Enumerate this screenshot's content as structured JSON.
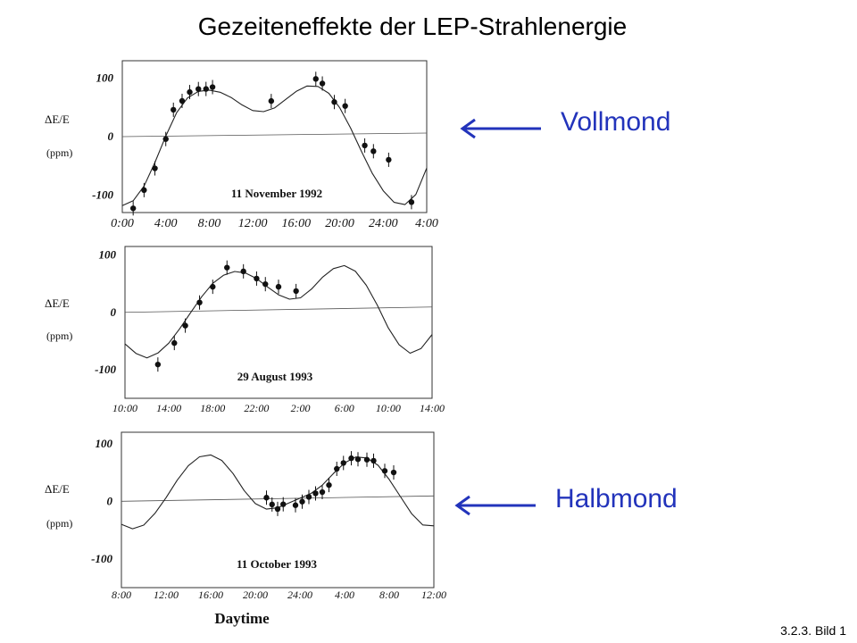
{
  "slide": {
    "title": "Gezeiteneffekte der LEP-Strahlenergie",
    "footer": "3.2.3. Bild 1",
    "moon_labels": [
      "Vollmond",
      "Halbmond"
    ],
    "accent_color": "#2233bb",
    "arrow_icon": "left-arrow-icon"
  },
  "chart_data": [
    {
      "type": "scatter",
      "date_label": "11 November 1992",
      "ylabel": "ΔE/E",
      "ylabel_unit": "(ppm)",
      "xlabel": "",
      "ylim": [
        -130,
        130
      ],
      "y_ticks": [
        100,
        0,
        -100
      ],
      "x_tick_labels": [
        "0:00",
        "4:00",
        "8:00",
        "12:00",
        "16:00",
        "20:00",
        "24:00",
        "4:00"
      ],
      "x_range_hours": [
        0,
        28
      ],
      "annotation": "Vollmond",
      "series": [
        {
          "kind": "measurement",
          "points": [
            {
              "x": 1.0,
              "y": -123
            },
            {
              "x": 2.0,
              "y": -92
            },
            {
              "x": 3.0,
              "y": -55
            },
            {
              "x": 4.0,
              "y": -5
            },
            {
              "x": 4.7,
              "y": 45
            },
            {
              "x": 5.5,
              "y": 60
            },
            {
              "x": 6.2,
              "y": 75
            },
            {
              "x": 7.0,
              "y": 80
            },
            {
              "x": 7.7,
              "y": 80
            },
            {
              "x": 8.3,
              "y": 83
            },
            {
              "x": 13.7,
              "y": 58
            },
            {
              "x": 17.8,
              "y": 95
            },
            {
              "x": 18.4,
              "y": 87
            },
            {
              "x": 19.5,
              "y": 55
            },
            {
              "x": 20.5,
              "y": 48
            },
            {
              "x": 22.3,
              "y": -20
            },
            {
              "x": 23.1,
              "y": -30
            },
            {
              "x": 24.5,
              "y": -45
            },
            {
              "x": 26.6,
              "y": -118
            }
          ]
        },
        {
          "kind": "model_curve",
          "curve": [
            {
              "x": 0,
              "y": -118
            },
            {
              "x": 1,
              "y": -110
            },
            {
              "x": 2,
              "y": -85
            },
            {
              "x": 3,
              "y": -45
            },
            {
              "x": 4,
              "y": 0
            },
            {
              "x": 5,
              "y": 40
            },
            {
              "x": 6,
              "y": 65
            },
            {
              "x": 7,
              "y": 76
            },
            {
              "x": 8,
              "y": 78
            },
            {
              "x": 9,
              "y": 74
            },
            {
              "x": 10,
              "y": 65
            },
            {
              "x": 11,
              "y": 52
            },
            {
              "x": 12,
              "y": 42
            },
            {
              "x": 13,
              "y": 40
            },
            {
              "x": 14,
              "y": 46
            },
            {
              "x": 15,
              "y": 60
            },
            {
              "x": 16,
              "y": 74
            },
            {
              "x": 17,
              "y": 83
            },
            {
              "x": 18,
              "y": 82
            },
            {
              "x": 19,
              "y": 70
            },
            {
              "x": 20,
              "y": 45
            },
            {
              "x": 21,
              "y": 10
            },
            {
              "x": 22,
              "y": -30
            },
            {
              "x": 23,
              "y": -68
            },
            {
              "x": 24,
              "y": -98
            },
            {
              "x": 25,
              "y": -118
            },
            {
              "x": 26,
              "y": -122
            },
            {
              "x": 27,
              "y": -105
            },
            {
              "x": 28,
              "y": -60
            }
          ]
        }
      ]
    },
    {
      "type": "scatter",
      "date_label": "29 August 1993",
      "ylabel": "ΔE/E",
      "ylabel_unit": "(ppm)",
      "xlabel": "",
      "ylim": [
        -150,
        115
      ],
      "y_ticks": [
        100,
        0,
        -100
      ],
      "x_tick_labels": [
        "10:00",
        "14:00",
        "18:00",
        "22:00",
        "2:00",
        "6:00",
        "10:00",
        "14:00"
      ],
      "x_range_hours": [
        10,
        38
      ],
      "annotation": "",
      "series": [
        {
          "kind": "measurement",
          "points": [
            {
              "x": 13.0,
              "y": -92
            },
            {
              "x": 14.5,
              "y": -55
            },
            {
              "x": 15.5,
              "y": -25
            },
            {
              "x": 16.8,
              "y": 15
            },
            {
              "x": 18.0,
              "y": 42
            },
            {
              "x": 19.3,
              "y": 75
            },
            {
              "x": 20.8,
              "y": 68
            },
            {
              "x": 22.0,
              "y": 55
            },
            {
              "x": 22.8,
              "y": 45
            },
            {
              "x": 24.0,
              "y": 40
            },
            {
              "x": 25.6,
              "y": 32
            }
          ]
        },
        {
          "kind": "model_curve",
          "curve": [
            {
              "x": 10,
              "y": -55
            },
            {
              "x": 11,
              "y": -72
            },
            {
              "x": 12,
              "y": -80
            },
            {
              "x": 13,
              "y": -72
            },
            {
              "x": 14,
              "y": -55
            },
            {
              "x": 15,
              "y": -30
            },
            {
              "x": 16,
              "y": -2
            },
            {
              "x": 17,
              "y": 25
            },
            {
              "x": 18,
              "y": 48
            },
            {
              "x": 19,
              "y": 62
            },
            {
              "x": 20,
              "y": 68
            },
            {
              "x": 21,
              "y": 65
            },
            {
              "x": 22,
              "y": 55
            },
            {
              "x": 23,
              "y": 40
            },
            {
              "x": 24,
              "y": 26
            },
            {
              "x": 25,
              "y": 18
            },
            {
              "x": 26,
              "y": 20
            },
            {
              "x": 27,
              "y": 35
            },
            {
              "x": 28,
              "y": 55
            },
            {
              "x": 29,
              "y": 70
            },
            {
              "x": 30,
              "y": 75
            },
            {
              "x": 31,
              "y": 65
            },
            {
              "x": 32,
              "y": 40
            },
            {
              "x": 33,
              "y": 5
            },
            {
              "x": 34,
              "y": -35
            },
            {
              "x": 35,
              "y": -65
            },
            {
              "x": 36,
              "y": -80
            },
            {
              "x": 37,
              "y": -72
            },
            {
              "x": 38,
              "y": -48
            }
          ]
        }
      ]
    },
    {
      "type": "scatter",
      "date_label": "11 October 1993",
      "ylabel": "ΔE/E",
      "ylabel_unit": "(ppm)",
      "xlabel": "Daytime",
      "ylim": [
        -150,
        120
      ],
      "y_ticks": [
        100,
        0,
        -100
      ],
      "x_tick_labels": [
        "8:00",
        "12:00",
        "16:00",
        "20:00",
        "24:00",
        "4:00",
        "8:00",
        "12:00"
      ],
      "x_range_hours": [
        8,
        36
      ],
      "annotation": "Halbmond",
      "series": [
        {
          "kind": "measurement",
          "points": [
            {
              "x": 21.0,
              "y": 2
            },
            {
              "x": 21.5,
              "y": -10
            },
            {
              "x": 22.0,
              "y": -18
            },
            {
              "x": 22.5,
              "y": -10
            },
            {
              "x": 23.6,
              "y": -12
            },
            {
              "x": 24.2,
              "y": -6
            },
            {
              "x": 24.8,
              "y": 2
            },
            {
              "x": 25.4,
              "y": 8
            },
            {
              "x": 26.0,
              "y": 10
            },
            {
              "x": 26.6,
              "y": 22
            },
            {
              "x": 27.3,
              "y": 50
            },
            {
              "x": 27.9,
              "y": 60
            },
            {
              "x": 28.6,
              "y": 68
            },
            {
              "x": 29.2,
              "y": 66
            },
            {
              "x": 30.0,
              "y": 65
            },
            {
              "x": 30.6,
              "y": 63
            },
            {
              "x": 31.6,
              "y": 45
            },
            {
              "x": 32.4,
              "y": 42
            }
          ]
        },
        {
          "kind": "model_curve",
          "curve": [
            {
              "x": 8,
              "y": -40
            },
            {
              "x": 9,
              "y": -48
            },
            {
              "x": 10,
              "y": -42
            },
            {
              "x": 11,
              "y": -22
            },
            {
              "x": 12,
              "y": 5
            },
            {
              "x": 13,
              "y": 35
            },
            {
              "x": 14,
              "y": 60
            },
            {
              "x": 15,
              "y": 75
            },
            {
              "x": 16,
              "y": 78
            },
            {
              "x": 17,
              "y": 68
            },
            {
              "x": 18,
              "y": 45
            },
            {
              "x": 19,
              "y": 15
            },
            {
              "x": 20,
              "y": -8
            },
            {
              "x": 21,
              "y": -18
            },
            {
              "x": 22,
              "y": -16
            },
            {
              "x": 23,
              "y": -8
            },
            {
              "x": 24,
              "y": 0
            },
            {
              "x": 25,
              "y": 8
            },
            {
              "x": 26,
              "y": 22
            },
            {
              "x": 27,
              "y": 42
            },
            {
              "x": 28,
              "y": 60
            },
            {
              "x": 29,
              "y": 70
            },
            {
              "x": 30,
              "y": 68
            },
            {
              "x": 31,
              "y": 55
            },
            {
              "x": 32,
              "y": 30
            },
            {
              "x": 33,
              "y": 0
            },
            {
              "x": 34,
              "y": -30
            },
            {
              "x": 35,
              "y": -50
            },
            {
              "x": 36,
              "y": -52
            }
          ]
        }
      ]
    }
  ]
}
